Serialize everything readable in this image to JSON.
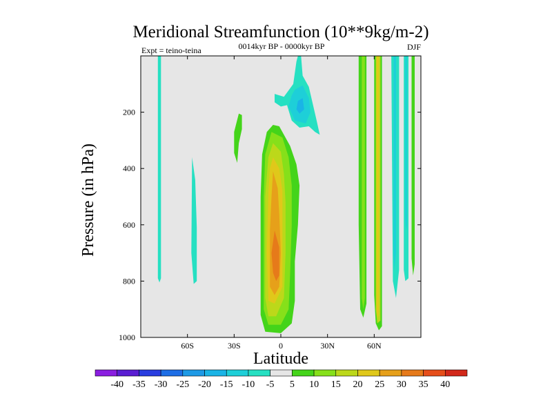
{
  "chart_data": {
    "type": "heatmap",
    "title": "Meridional Streamfunction (10**9kg/m-2)",
    "subtitle": "0014kyr BP - 0000kyr BP",
    "left_label": "Expt = teino-teina",
    "right_label": "DJF",
    "xlabel": "Latitude",
    "ylabel": "Pressure (in hPa)",
    "xlim": [
      -90,
      90
    ],
    "ylim": [
      1000,
      0
    ],
    "x_ticks": [
      {
        "value": -60,
        "label": "60S"
      },
      {
        "value": -30,
        "label": "30S"
      },
      {
        "value": 0,
        "label": "0"
      },
      {
        "value": 30,
        "label": "30N"
      },
      {
        "value": 60,
        "label": "60N"
      }
    ],
    "y_ticks": [
      {
        "value": 200,
        "label": "200"
      },
      {
        "value": 400,
        "label": "400"
      },
      {
        "value": 600,
        "label": "600"
      },
      {
        "value": 800,
        "label": "800"
      },
      {
        "value": 1000,
        "label": "1000"
      }
    ],
    "background_color": "#e6e6e6",
    "colorbar": {
      "labels": [
        "-40",
        "-35",
        "-30",
        "-25",
        "-20",
        "-15",
        "-10",
        "-5",
        "5",
        "10",
        "15",
        "20",
        "25",
        "30",
        "35",
        "40"
      ],
      "colors": [
        "#8a1ee0",
        "#5a1ed2",
        "#2a3ee0",
        "#1e6ee6",
        "#1e9ae6",
        "#1ab4e6",
        "#1ecfd8",
        "#26e0c2",
        "#e6e6e6",
        "#44d41a",
        "#86e01a",
        "#bcd81a",
        "#e0c81a",
        "#e6a01a",
        "#e67a1a",
        "#e64e1a",
        "#d2281a"
      ]
    },
    "series": [
      {
        "name": "-5 contour band near 80S",
        "level": -5,
        "color": "#26e0c2",
        "points": [
          [
            -79,
            0
          ],
          [
            -77,
            0
          ],
          [
            -77,
            790
          ],
          [
            -78,
            805
          ],
          [
            -79,
            790
          ]
        ]
      },
      {
        "name": "-5 contour band near 57S",
        "level": -5,
        "color": "#26e0c2",
        "points": [
          [
            -57,
            360
          ],
          [
            -55,
            440
          ],
          [
            -54,
            610
          ],
          [
            -54,
            800
          ],
          [
            -56,
            810
          ],
          [
            -57.5,
            700
          ]
        ]
      },
      {
        "name": "+5 cell near 27S",
        "level": 5,
        "color": "#44d41a",
        "points": [
          [
            -27,
            205
          ],
          [
            -25,
            210
          ],
          [
            -25,
            260
          ],
          [
            -27,
            310
          ],
          [
            -28,
            380
          ],
          [
            -30,
            345
          ],
          [
            -30,
            270
          ]
        ]
      },
      {
        "name": "-5 cell near 10N",
        "level": -5,
        "color": "#26e0c2",
        "points": [
          [
            11,
            0
          ],
          [
            13,
            0
          ],
          [
            14,
            70
          ],
          [
            18,
            110
          ],
          [
            23,
            230
          ],
          [
            25,
            280
          ],
          [
            22,
            270
          ],
          [
            18,
            250
          ],
          [
            12,
            255
          ],
          [
            7,
            230
          ],
          [
            4,
            175
          ],
          [
            0,
            180
          ],
          [
            -4,
            165
          ],
          [
            -4,
            135
          ],
          [
            2,
            145
          ],
          [
            8,
            100
          ],
          [
            10,
            20
          ]
        ]
      },
      {
        "name": "-10 core",
        "level": -10,
        "color": "#1ecfd8",
        "points": [
          [
            9,
            120
          ],
          [
            14,
            105
          ],
          [
            18,
            150
          ],
          [
            19,
            200
          ],
          [
            16,
            240
          ],
          [
            9,
            230
          ],
          [
            5,
            180
          ],
          [
            7,
            140
          ]
        ]
      },
      {
        "name": "-15 core",
        "level": -15,
        "color": "#1ab4e6",
        "points": [
          [
            11,
            160
          ],
          [
            14,
            150
          ],
          [
            15,
            190
          ],
          [
            12,
            205
          ],
          [
            10,
            190
          ]
        ]
      },
      {
        "name": "+5 main cell",
        "level": 5,
        "color": "#44d41a",
        "points": [
          [
            -5,
            245
          ],
          [
            -1,
            250
          ],
          [
            6,
            320
          ],
          [
            10,
            385
          ],
          [
            12,
            460
          ],
          [
            11,
            600
          ],
          [
            9,
            730
          ],
          [
            9,
            870
          ],
          [
            7,
            950
          ],
          [
            0,
            985
          ],
          [
            -10,
            980
          ],
          [
            -13,
            920
          ],
          [
            -13,
            500
          ],
          [
            -12,
            350
          ],
          [
            -9,
            270
          ]
        ]
      },
      {
        "name": "+10 main cell",
        "level": 10,
        "color": "#86e01a",
        "points": [
          [
            -6,
            270
          ],
          [
            1,
            290
          ],
          [
            5,
            360
          ],
          [
            7,
            460
          ],
          [
            7,
            600
          ],
          [
            6,
            770
          ],
          [
            5,
            900
          ],
          [
            0,
            955
          ],
          [
            -8,
            955
          ],
          [
            -11,
            900
          ],
          [
            -11,
            500
          ],
          [
            -10,
            350
          ]
        ]
      },
      {
        "name": "+15 main cell",
        "level": 15,
        "color": "#bcd81a",
        "points": [
          [
            -5,
            310
          ],
          [
            0,
            340
          ],
          [
            2,
            420
          ],
          [
            3,
            520
          ],
          [
            3,
            700
          ],
          [
            2,
            860
          ],
          [
            -3,
            925
          ],
          [
            -8,
            925
          ],
          [
            -10,
            860
          ],
          [
            -10,
            500
          ],
          [
            -8,
            360
          ]
        ]
      },
      {
        "name": "+20 main cell",
        "level": 20,
        "color": "#e0c81a",
        "points": [
          [
            -5,
            360
          ],
          [
            -1,
            400
          ],
          [
            1,
            480
          ],
          [
            1,
            620
          ],
          [
            1,
            820
          ],
          [
            -4,
            880
          ],
          [
            -8,
            870
          ],
          [
            -9,
            700
          ],
          [
            -8,
            480
          ],
          [
            -7,
            400
          ]
        ]
      },
      {
        "name": "+25 main cell",
        "level": 25,
        "color": "#e6a01a",
        "points": [
          [
            -5,
            410
          ],
          [
            -2,
            470
          ],
          [
            -1,
            560
          ],
          [
            0,
            700
          ],
          [
            -1,
            820
          ],
          [
            -4,
            850
          ],
          [
            -7,
            820
          ],
          [
            -7,
            620
          ],
          [
            -6,
            500
          ]
        ]
      },
      {
        "name": "+30 main cell",
        "level": 30,
        "color": "#e67a1a",
        "points": [
          [
            -4,
            620
          ],
          [
            -1,
            680
          ],
          [
            -1,
            780
          ],
          [
            -3,
            800
          ],
          [
            -5,
            770
          ],
          [
            -6,
            700
          ]
        ]
      },
      {
        "name": "+5 band near 52N",
        "level": 5,
        "color": "#44d41a",
        "points": [
          [
            50,
            0
          ],
          [
            55,
            0
          ],
          [
            55,
            880
          ],
          [
            53,
            930
          ],
          [
            51,
            900
          ],
          [
            50,
            600
          ]
        ]
      },
      {
        "name": "+10 band near 52N",
        "level": 10,
        "color": "#86e01a",
        "points": [
          [
            52,
            0
          ],
          [
            54,
            0
          ],
          [
            54,
            860
          ],
          [
            53,
            900
          ],
          [
            52,
            860
          ]
        ]
      },
      {
        "name": "+5 band near 63N",
        "level": 5,
        "color": "#44d41a",
        "points": [
          [
            60,
            0
          ],
          [
            65,
            0
          ],
          [
            65,
            960
          ],
          [
            63,
            975
          ],
          [
            61,
            950
          ],
          [
            60,
            850
          ]
        ]
      },
      {
        "name": "+15 band near 62N",
        "level": 15,
        "color": "#bcd81a",
        "points": [
          [
            61,
            0
          ],
          [
            64,
            0
          ],
          [
            64,
            940
          ],
          [
            62,
            950
          ],
          [
            61,
            900
          ]
        ]
      },
      {
        "name": "+20 band near 62N",
        "level": 20,
        "color": "#e0c81a",
        "points": [
          [
            61.5,
            0
          ],
          [
            63,
            0
          ],
          [
            63,
            920
          ],
          [
            62.2,
            930
          ],
          [
            61.5,
            900
          ]
        ]
      },
      {
        "name": "-5 band near 73N",
        "level": -5,
        "color": "#26e0c2",
        "points": [
          [
            71,
            0
          ],
          [
            76,
            0
          ],
          [
            76,
            760
          ],
          [
            74,
            860
          ],
          [
            72,
            800
          ]
        ]
      },
      {
        "name": "-10 band near 73N",
        "level": -10,
        "color": "#1ecfd8",
        "points": [
          [
            72.5,
            0
          ],
          [
            74,
            0
          ],
          [
            74,
            700
          ],
          [
            73,
            760
          ],
          [
            72.5,
            700
          ]
        ]
      },
      {
        "name": "-5 band near 80N",
        "level": -5,
        "color": "#26e0c2",
        "points": [
          [
            79,
            0
          ],
          [
            82,
            0
          ],
          [
            82,
            790
          ],
          [
            80,
            800
          ],
          [
            79,
            760
          ]
        ]
      },
      {
        "name": "-10 band near 80N",
        "level": -10,
        "color": "#1ecfd8",
        "points": [
          [
            80,
            0
          ],
          [
            81,
            0
          ],
          [
            81,
            600
          ],
          [
            80.5,
            620
          ],
          [
            80,
            580
          ]
        ]
      },
      {
        "name": "+5 band near 85N",
        "level": 5,
        "color": "#44d41a",
        "points": [
          [
            84,
            0
          ],
          [
            86,
            0
          ],
          [
            86,
            740
          ],
          [
            85,
            780
          ],
          [
            84,
            720
          ]
        ]
      }
    ]
  }
}
